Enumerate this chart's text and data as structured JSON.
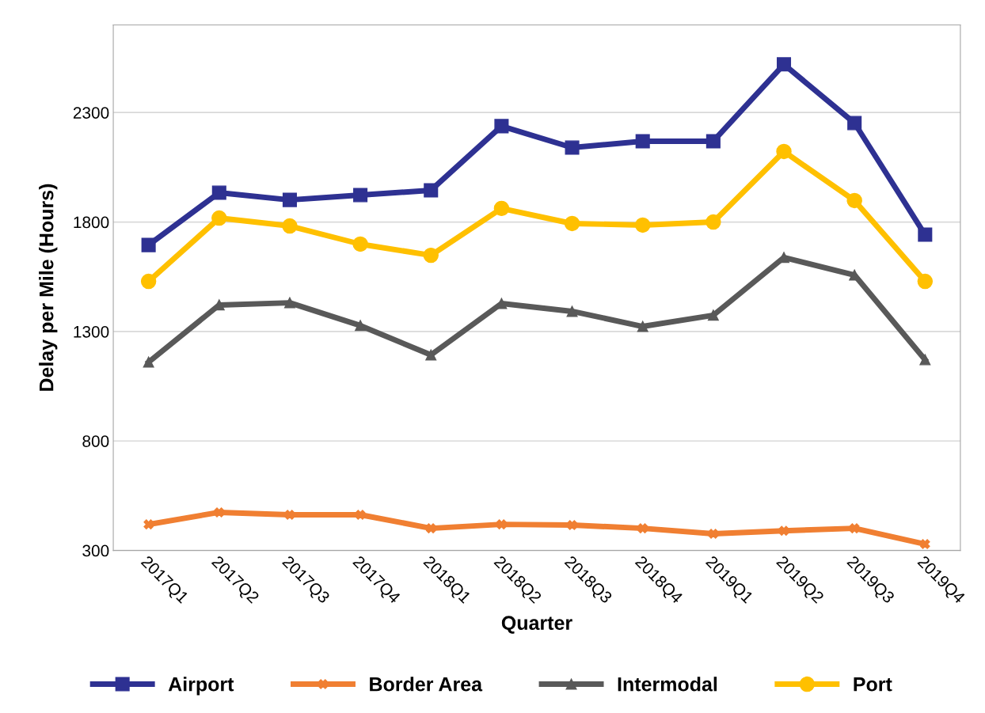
{
  "chart_data": {
    "type": "line",
    "xlabel": "Quarter",
    "ylabel": "Delay per Mile (Hours)",
    "categories": [
      "2017Q1",
      "2017Q2",
      "2017Q3",
      "2017Q4",
      "2018Q1",
      "2018Q2",
      "2018Q3",
      "2018Q4",
      "2019Q1",
      "2019Q2",
      "2019Q3",
      "2019Q4"
    ],
    "series": [
      {
        "name": "Airport",
        "color": "#2e3192",
        "marker": "square",
        "values": [
          1695,
          1934,
          1901,
          1923,
          1945,
          2238,
          2140,
          2169,
          2169,
          2520,
          2252,
          1742
        ]
      },
      {
        "name": "Border Area",
        "color": "#f07f32",
        "marker": "cross",
        "values": [
          419,
          474,
          463,
          463,
          401,
          419,
          416,
          401,
          376,
          390,
          401,
          329
        ]
      },
      {
        "name": "Intermodal",
        "color": "#595959",
        "marker": "triangle",
        "values": [
          1160,
          1421,
          1431,
          1327,
          1193,
          1428,
          1392,
          1323,
          1374,
          1638,
          1558,
          1171
        ]
      },
      {
        "name": "Port",
        "color": "#ffc000",
        "marker": "circle",
        "values": [
          1529,
          1818,
          1782,
          1699,
          1648,
          1862,
          1793,
          1786,
          1800,
          2122,
          1898,
          1529
        ]
      }
    ],
    "ylim": [
      300,
      2700
    ],
    "yticks": [
      300,
      800,
      1300,
      1800,
      2300
    ],
    "grid": "y",
    "legend": "bottom",
    "line_style": "solid"
  }
}
